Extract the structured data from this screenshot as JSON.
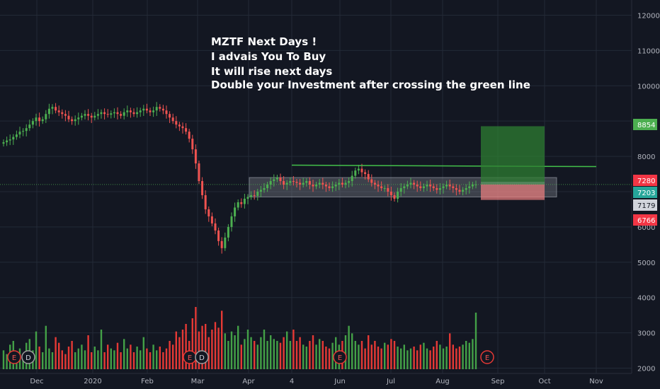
{
  "chart_data": {
    "type": "candlestick",
    "title": "",
    "annotation_lines": [
      "MZTF Next Days !",
      "I advais You To Buy",
      "It will rise next days",
      "Double your Investment after crossing the green line"
    ],
    "y_axis": {
      "ticks": [
        2000,
        3000,
        4000,
        5000,
        6000,
        7000,
        8000,
        9000,
        10000,
        11000,
        12000
      ],
      "tick_labels": [
        "2000",
        "3000",
        "4000",
        "5000",
        "6000",
        "7000",
        "8000",
        "9000",
        "10000",
        "11000",
        "12000"
      ],
      "range": [
        1850,
        12350
      ]
    },
    "x_axis": {
      "labels": [
        "Dec",
        "2020",
        "Feb",
        "Mar",
        "Apr",
        "4",
        "Jun",
        "Jul",
        "Aug",
        "Sep",
        "Oct",
        "Nov"
      ]
    },
    "price_labels": [
      {
        "value": 8854,
        "text": "8854",
        "color": "#4caf50",
        "text_color": "#ffffff"
      },
      {
        "value": 7280,
        "text": "7280",
        "color": "#f23645",
        "text_color": "#ffffff"
      },
      {
        "value": 7203,
        "text": "7203",
        "color": "#26a69a",
        "text_color": "#ffffff"
      },
      {
        "value": 7179,
        "text": "7179",
        "color": "#d1d4dc",
        "text_color": "#131722"
      },
      {
        "value": 6766,
        "text": "6766",
        "color": "#f23645",
        "text_color": "#ffffff"
      }
    ],
    "closes": [
      8400,
      8450,
      8480,
      8550,
      8620,
      8700,
      8720,
      8800,
      8900,
      9000,
      9100,
      9000,
      9050,
      9200,
      9350,
      9400,
      9300,
      9250,
      9200,
      9150,
      9050,
      9000,
      9050,
      9100,
      9150,
      9200,
      9150,
      9100,
      9150,
      9200,
      9250,
      9200,
      9180,
      9220,
      9250,
      9200,
      9150,
      9250,
      9300,
      9250,
      9200,
      9250,
      9300,
      9350,
      9300,
      9250,
      9300,
      9400,
      9350,
      9300,
      9200,
      9100,
      9000,
      8900,
      8850,
      8800,
      8700,
      8500,
      8200,
      7800,
      7300,
      6900,
      6500,
      6300,
      6100,
      5900,
      5600,
      5400,
      5700,
      6000,
      6300,
      6550,
      6700,
      6650,
      6800,
      6850,
      6900,
      6880,
      7000,
      7050,
      7100,
      7200,
      7300,
      7350,
      7400,
      7300,
      7200,
      7250,
      7300,
      7280,
      7250,
      7200,
      7250,
      7300,
      7200,
      7150,
      7200,
      7250,
      7200,
      7150,
      7100,
      7150,
      7200,
      7250,
      7200,
      7250,
      7300,
      7450,
      7600,
      7650,
      7550,
      7500,
      7350,
      7250,
      7200,
      7150,
      7100,
      7100,
      7000,
      6900,
      6800,
      7000,
      7100,
      7150,
      7200,
      7250,
      7200,
      7150,
      7100,
      7150,
      7200,
      7150,
      7100,
      7050,
      7100,
      7150,
      7200,
      7150,
      7100,
      7050,
      7000,
      7050,
      7100,
      7150,
      7200,
      7203
    ],
    "volumes": [
      2500,
      2300,
      2800,
      3000,
      2400,
      2600,
      2200,
      2900,
      3100,
      2500,
      3500,
      2700,
      2400,
      3800,
      2600,
      2400,
      3200,
      2900,
      2500,
      2300,
      2700,
      3000,
      2400,
      2600,
      2800,
      2500,
      3300,
      2400,
      2700,
      2500,
      3600,
      2400,
      2800,
      2600,
      2500,
      2900,
      2400,
      3100,
      2600,
      2800,
      2400,
      2700,
      2500,
      3200,
      2600,
      2400,
      2800,
      2500,
      2700,
      2400,
      2600,
      3000,
      2800,
      3500,
      3200,
      3600,
      3900,
      3000,
      4200,
      4800,
      3500,
      3800,
      3900,
      3200,
      3600,
      4000,
      3700,
      4600,
      3400,
      3000,
      3500,
      3300,
      3800,
      2800,
      3100,
      3600,
      3200,
      3000,
      2800,
      3200,
      3600,
      3000,
      3300,
      3100,
      3000,
      2900,
      3200,
      3500,
      3000,
      3600,
      3000,
      3200,
      2800,
      2700,
      3000,
      3300,
      2800,
      3100,
      3000,
      2700,
      2600,
      2900,
      3200,
      2800,
      3000,
      3300,
      3800,
      3400,
      3000,
      2800,
      3000,
      2600,
      3300,
      2800,
      3000,
      2700,
      2600,
      2900,
      2800,
      3100,
      3000,
      2700,
      2600,
      2800,
      2500,
      2600,
      2700,
      2500,
      2800,
      2900,
      2600,
      2500,
      2700,
      3000,
      2800,
      2600,
      2700,
      3400,
      2800,
      2600,
      2700,
      2800,
      3000,
      2900,
      3100,
      4500
    ],
    "resistance_line_value": 7750,
    "consolidation_zone": [
      6850,
      7400
    ],
    "position_tool": {
      "entry": 7203,
      "stop": 6766,
      "target": 8854,
      "target_zone_bottom": 7280
    },
    "volume_axis": false,
    "grid": true
  },
  "colors": {
    "background": "#131722",
    "grid": "#232a37",
    "up": "#4caf50",
    "down": "#ef5350",
    "volume_up": "#43a047",
    "volume_down": "#e53935",
    "axis_text": "#b2b5be",
    "resistance_line": "#43c04a",
    "zone_fill": "#8b8f99",
    "profit_zone": "#2e7d32",
    "loss_zone": "#f08080",
    "event_marker_red": "#e53935",
    "event_marker_grey": "#9e9e9e"
  },
  "events": [
    {
      "letter": "E",
      "tone": "red"
    },
    {
      "letter": "D",
      "tone": "grey"
    },
    {
      "letter": "E",
      "tone": "red"
    },
    {
      "letter": "D",
      "tone": "grey"
    },
    {
      "letter": "E",
      "tone": "red"
    },
    {
      "letter": "E",
      "tone": "red"
    }
  ]
}
